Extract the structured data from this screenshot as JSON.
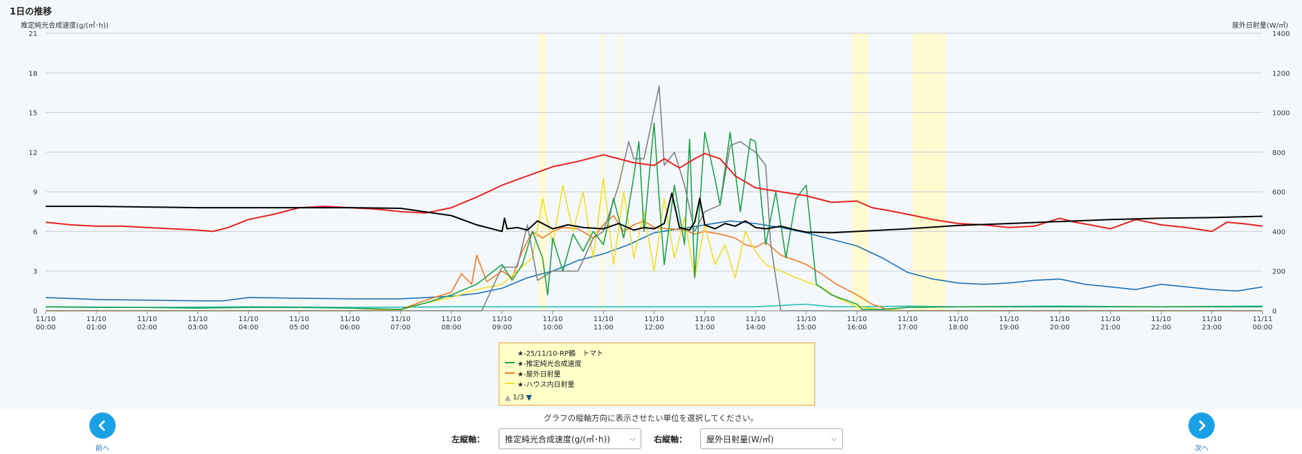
{
  "page": {
    "title": "1日の推移"
  },
  "axes": {
    "left_title": "推定純光合成速度(g/(㎡･h))",
    "right_title": "屋外日射量(W/㎡)"
  },
  "legend": {
    "items": [
      {
        "label": "★-25/11/10-RP鶴　トマト",
        "color": ""
      },
      {
        "label": "★-推定純光合成速度",
        "color": "#1aa04a"
      },
      {
        "label": "★-屋外日射量",
        "color": "#f07820"
      },
      {
        "label": "★-ハウス内日射量",
        "color": "#f0e020"
      }
    ],
    "pager": {
      "text": "1/3",
      "up": "▲",
      "down": "▼"
    }
  },
  "help_text": "グラフの縦軸方向に表示させたい単位を選択してください。",
  "nav": {
    "prev_label": "前へ",
    "next_label": "次へ"
  },
  "controls": {
    "left_axis_label": "左縦軸：",
    "left_axis_value": "推定純光合成速度(g/(㎡･h))",
    "right_axis_label": "右縦軸：",
    "right_axis_value": "屋外日射量(W/㎡)"
  },
  "chart_data": {
    "type": "line",
    "title": "1日の推移",
    "ylabel": "推定純光合成速度(g/(㎡･h))",
    "y2label": "屋外日射量(W/㎡)",
    "ylim": [
      0,
      21
    ],
    "y2lim": [
      0,
      1400
    ],
    "yticks": [
      0,
      3,
      6,
      9,
      12,
      15,
      18,
      21
    ],
    "y2ticks": [
      0,
      200,
      400,
      600,
      800,
      1000,
      1200,
      1400
    ],
    "grid": true,
    "xticks": [
      [
        "11/10",
        "00:00"
      ],
      [
        "11/10",
        "01:00"
      ],
      [
        "11/10",
        "02:00"
      ],
      [
        "11/10",
        "03:00"
      ],
      [
        "11/10",
        "04:00"
      ],
      [
        "11/10",
        "05:00"
      ],
      [
        "11/10",
        "06:00"
      ],
      [
        "11/10",
        "07:00"
      ],
      [
        "11/10",
        "08:00"
      ],
      [
        "11/10",
        "09:00"
      ],
      [
        "11/10",
        "10:00"
      ],
      [
        "11/10",
        "11:00"
      ],
      [
        "11/10",
        "12:00"
      ],
      [
        "11/10",
        "13:00"
      ],
      [
        "11/10",
        "14:00"
      ],
      [
        "11/10",
        "15:00"
      ],
      [
        "11/10",
        "16:00"
      ],
      [
        "11/10",
        "17:00"
      ],
      [
        "11/10",
        "18:00"
      ],
      [
        "11/10",
        "19:00"
      ],
      [
        "11/10",
        "20:00"
      ],
      [
        "11/10",
        "21:00"
      ],
      [
        "11/10",
        "22:00"
      ],
      [
        "11/10",
        "23:00"
      ],
      [
        "11/11",
        "00:00"
      ]
    ],
    "highlight_bands_hours": [
      [
        9.73,
        9.87
      ],
      [
        10.95,
        11.0
      ],
      [
        11.3,
        11.34
      ],
      [
        15.9,
        16.22
      ],
      [
        17.1,
        17.75
      ]
    ],
    "series": [
      {
        "name": "",
        "color": "#000000",
        "axis": "left",
        "x": [
          0,
          1,
          2,
          3,
          4,
          5,
          6,
          7,
          8,
          8.5,
          9,
          9.05,
          9.1,
          9.3,
          9.5,
          9.7,
          10,
          10.3,
          10.6,
          11,
          11.3,
          11.6,
          11.8,
          12,
          12.2,
          12.35,
          12.5,
          12.7,
          12.8,
          12.9,
          13,
          13.2,
          13.4,
          13.6,
          13.8,
          14,
          14.2,
          14.5,
          14.8,
          15,
          15.5,
          16,
          17,
          18,
          19,
          20,
          21,
          22,
          23,
          24
        ],
        "y": [
          7.9,
          7.9,
          7.85,
          7.8,
          7.8,
          7.8,
          7.8,
          7.75,
          7.2,
          6.5,
          6.0,
          7.0,
          6.2,
          6.3,
          6.1,
          6.8,
          6.2,
          6.5,
          6.3,
          6.2,
          6.6,
          6.1,
          6.3,
          6.2,
          6.6,
          8.9,
          6.3,
          6.1,
          6.7,
          8.5,
          6.5,
          6.2,
          6.6,
          6.4,
          6.8,
          6.3,
          6.2,
          6.4,
          6.1,
          5.95,
          5.9,
          6.0,
          6.2,
          6.45,
          6.6,
          6.75,
          6.9,
          7.0,
          7.05,
          7.15
        ]
      },
      {
        "name": "",
        "color": "#e82020",
        "axis": "left",
        "x": [
          0,
          0.5,
          1,
          1.5,
          2,
          2.5,
          3,
          3.3,
          3.6,
          4,
          4.5,
          5,
          5.5,
          6,
          6.5,
          7,
          7.5,
          8,
          8.5,
          9,
          9.5,
          10,
          10.5,
          11,
          11.3,
          11.6,
          12,
          12.2,
          12.5,
          12.8,
          13,
          13.3,
          13.6,
          14,
          14.5,
          15,
          15.5,
          16,
          16.3,
          16.6,
          17,
          17.5,
          18,
          18.5,
          19,
          19.5,
          20,
          20.3,
          20.6,
          21,
          21.5,
          22,
          22.5,
          23,
          23.3,
          23.6,
          24
        ],
        "y": [
          6.7,
          6.5,
          6.4,
          6.4,
          6.3,
          6.2,
          6.1,
          6.0,
          6.3,
          6.9,
          7.3,
          7.8,
          7.9,
          7.8,
          7.7,
          7.5,
          7.4,
          7.8,
          8.6,
          9.5,
          10.2,
          10.9,
          11.3,
          11.8,
          11.5,
          11.2,
          11.0,
          11.5,
          10.8,
          11.5,
          11.9,
          11.5,
          10.2,
          9.3,
          9.0,
          8.7,
          8.2,
          8.3,
          7.8,
          7.6,
          7.3,
          6.9,
          6.6,
          6.5,
          6.3,
          6.4,
          7.0,
          6.7,
          6.5,
          6.2,
          6.9,
          6.5,
          6.3,
          6.0,
          6.7,
          6.6,
          6.4
        ]
      },
      {
        "name": "★-推定純光合成速度",
        "color": "#1aa04a",
        "axis": "left",
        "x": [
          0,
          1,
          2,
          3,
          4,
          5,
          6,
          7,
          7.5,
          8,
          8.5,
          9,
          9.2,
          9.4,
          9.6,
          9.8,
          9.9,
          10,
          10.2,
          10.4,
          10.6,
          10.8,
          11,
          11.2,
          11.4,
          11.6,
          11.7,
          11.8,
          12,
          12.1,
          12.2,
          12.4,
          12.6,
          12.7,
          12.8,
          13,
          13.2,
          13.3,
          13.5,
          13.7,
          13.9,
          14,
          14.2,
          14.4,
          14.6,
          14.8,
          15,
          15.2,
          15.5,
          16,
          16.1,
          16.5,
          17,
          18,
          19,
          20,
          21,
          22,
          23,
          24
        ],
        "y": [
          0.3,
          0.25,
          0.25,
          0.2,
          0.25,
          0.25,
          0.2,
          0.1,
          0.6,
          1.2,
          2.0,
          3.5,
          2.3,
          3.5,
          6.0,
          4.0,
          1.2,
          5.5,
          3.0,
          5.8,
          4.5,
          6.0,
          5.0,
          8.5,
          5.5,
          10.2,
          12.8,
          6.0,
          14.2,
          8.5,
          3.5,
          9.5,
          5.0,
          13.0,
          2.5,
          13.5,
          10.0,
          8.0,
          13.5,
          7.5,
          13.0,
          12.8,
          5.0,
          9.0,
          4.0,
          8.5,
          9.5,
          2.0,
          1.2,
          0.5,
          0.1,
          0.1,
          0.25,
          0.3,
          0.3,
          0.3,
          0.3,
          0.3,
          0.3,
          0.3
        ]
      },
      {
        "name": "★-屋外日射量",
        "color": "#f07820",
        "axis": "left",
        "x": [
          0,
          6,
          7,
          7.5,
          8,
          8.2,
          8.4,
          8.5,
          8.7,
          9,
          9.2,
          9.4,
          9.6,
          9.8,
          10,
          10.2,
          10.5,
          10.8,
          11,
          11.2,
          11.4,
          11.6,
          11.8,
          12,
          12.3,
          12.6,
          12.8,
          13,
          13.3,
          13.6,
          13.8,
          14,
          14.2,
          14.5,
          14.8,
          15,
          15.3,
          15.6,
          16,
          16.3,
          16.6,
          17,
          24
        ],
        "y": [
          0,
          0,
          0.1,
          0.8,
          1.4,
          2.8,
          2.0,
          4.2,
          2.2,
          3.0,
          2.5,
          4.5,
          6.0,
          5.5,
          6.0,
          6.3,
          6.2,
          5.5,
          6.5,
          7.2,
          6.0,
          6.5,
          6.8,
          6.3,
          6.2,
          6.1,
          5.8,
          6.0,
          5.8,
          5.5,
          5.0,
          4.8,
          5.2,
          4.2,
          3.8,
          3.5,
          2.8,
          2.0,
          1.2,
          0.5,
          0.1,
          0,
          0
        ]
      },
      {
        "name": "★-ハウス内日射量",
        "color": "#f0e020",
        "axis": "left",
        "x": [
          0,
          6,
          7,
          7.5,
          8,
          8.5,
          9,
          9.3,
          9.6,
          9.8,
          10,
          10.2,
          10.4,
          10.6,
          10.8,
          11,
          11.2,
          11.4,
          11.6,
          11.8,
          12,
          12.2,
          12.4,
          12.6,
          12.8,
          13,
          13.2,
          13.4,
          13.6,
          13.8,
          14,
          14.2,
          14.5,
          14.8,
          15,
          15.3,
          15.6,
          16,
          16.5,
          17,
          24
        ],
        "y": [
          0,
          0,
          0.05,
          0.6,
          1.0,
          1.6,
          2.0,
          3.0,
          4.0,
          8.5,
          5.0,
          9.5,
          6.0,
          9.0,
          4.0,
          10.0,
          3.5,
          9.0,
          4.0,
          7.5,
          3.0,
          8.5,
          4.0,
          7.0,
          2.5,
          6.5,
          3.5,
          5.0,
          2.5,
          6.0,
          4.5,
          3.5,
          3.0,
          2.5,
          2.2,
          1.8,
          1.0,
          0.3,
          0.1,
          0,
          0
        ]
      },
      {
        "name": "",
        "color": "#808080",
        "axis": "left",
        "x": [
          0,
          8.6,
          9.0,
          9.3,
          9.5,
          9.7,
          10.0,
          10.5,
          10.8,
          11.0,
          11.3,
          11.5,
          11.6,
          11.8,
          12.1,
          12.2,
          12.4,
          12.6,
          12.8,
          13.0,
          13.3,
          13.5,
          13.7,
          14.0,
          14.2,
          14.3,
          14.5,
          14.8,
          24
        ],
        "y": [
          0,
          0,
          3.3,
          3.3,
          6.5,
          2.3,
          3.0,
          3.0,
          5.5,
          6.0,
          9.5,
          12.8,
          11.5,
          11.5,
          17.0,
          11.0,
          12.0,
          9.5,
          6.0,
          7.5,
          8.0,
          12.5,
          12.8,
          12.0,
          11.0,
          5.0,
          0,
          0,
          0
        ]
      },
      {
        "name": "",
        "color": "#1a70b8",
        "axis": "left",
        "x": [
          0,
          1,
          2,
          3,
          3.5,
          4,
          5,
          6,
          7,
          7.5,
          8,
          8.5,
          9,
          9.5,
          10,
          10.5,
          11,
          11.5,
          12,
          12.5,
          13,
          13.5,
          14,
          14.5,
          15,
          15.5,
          16,
          16.5,
          17,
          17.5,
          18,
          18.5,
          19,
          19.5,
          20,
          20.5,
          21,
          21.5,
          22,
          22.5,
          23,
          23.5,
          24
        ],
        "y": [
          1.0,
          0.85,
          0.8,
          0.75,
          0.75,
          1.0,
          0.95,
          0.9,
          0.9,
          1.0,
          1.1,
          1.3,
          1.7,
          2.5,
          3.0,
          3.8,
          4.3,
          5.0,
          5.9,
          6.2,
          6.5,
          6.8,
          6.6,
          6.3,
          5.9,
          5.4,
          4.9,
          4.0,
          2.9,
          2.4,
          2.1,
          2.0,
          2.1,
          2.3,
          2.4,
          2.0,
          1.8,
          1.6,
          2.0,
          1.8,
          1.6,
          1.5,
          1.8
        ]
      },
      {
        "name": "",
        "color": "#20c0b0",
        "axis": "left",
        "x": [
          0,
          2,
          4,
          6,
          8,
          10,
          12,
          14,
          15,
          15.5,
          16,
          17,
          18,
          20,
          22,
          24
        ],
        "y": [
          0.3,
          0.25,
          0.3,
          0.25,
          0.3,
          0.3,
          0.3,
          0.3,
          0.5,
          0.3,
          0.3,
          0.35,
          0.3,
          0.35,
          0.3,
          0.35
        ]
      }
    ]
  }
}
